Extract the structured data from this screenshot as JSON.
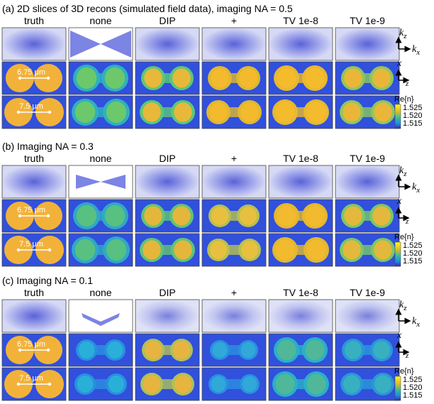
{
  "panels": [
    {
      "title": "(a) 2D slices of 3D recons (simulated field data), imaging NA = 0.5",
      "columns": [
        "truth",
        "none",
        "DIP",
        "+",
        "TV 1e-8",
        "TV 1e-9"
      ],
      "scale_bars": [
        "6.75 μm",
        "7.5 μm"
      ],
      "axes_top": {
        "up": "k",
        "up_sub": "z",
        "right": "k",
        "right_sub": "x"
      },
      "axes_mid": {
        "up": "x",
        "right": "z"
      },
      "colorbar": {
        "label": "Re{n}",
        "ticks": [
          "1.525",
          "1.520",
          "1.515"
        ]
      }
    },
    {
      "title": "(b) Imaging NA = 0.3",
      "columns": [
        "truth",
        "none",
        "DIP",
        "+",
        "TV 1e-8",
        "TV 1e-9"
      ],
      "scale_bars": [
        "6.75 μm",
        "7.5 μm"
      ],
      "axes_top": {
        "up": "k",
        "up_sub": "z",
        "right": "k",
        "right_sub": "x"
      },
      "axes_mid": {
        "up": "x",
        "right": "z"
      },
      "colorbar": {
        "label": "Re{n}",
        "ticks": [
          "1.525",
          "1.520",
          "1.515"
        ]
      }
    },
    {
      "title": "(c) Imaging NA = 0.1",
      "columns": [
        "truth",
        "none",
        "DIP",
        "+",
        "TV 1e-8",
        "TV 1e-9"
      ],
      "scale_bars": [
        "6.75 μm",
        "7.5 μm"
      ],
      "axes_top": {
        "up": "k",
        "up_sub": "z",
        "right": "k",
        "right_sub": "x"
      },
      "axes_mid": {
        "up": "x",
        "right": "z"
      },
      "colorbar": {
        "label": "Re{n}",
        "ticks": [
          "1.525",
          "1.520",
          "1.515"
        ]
      }
    }
  ]
}
